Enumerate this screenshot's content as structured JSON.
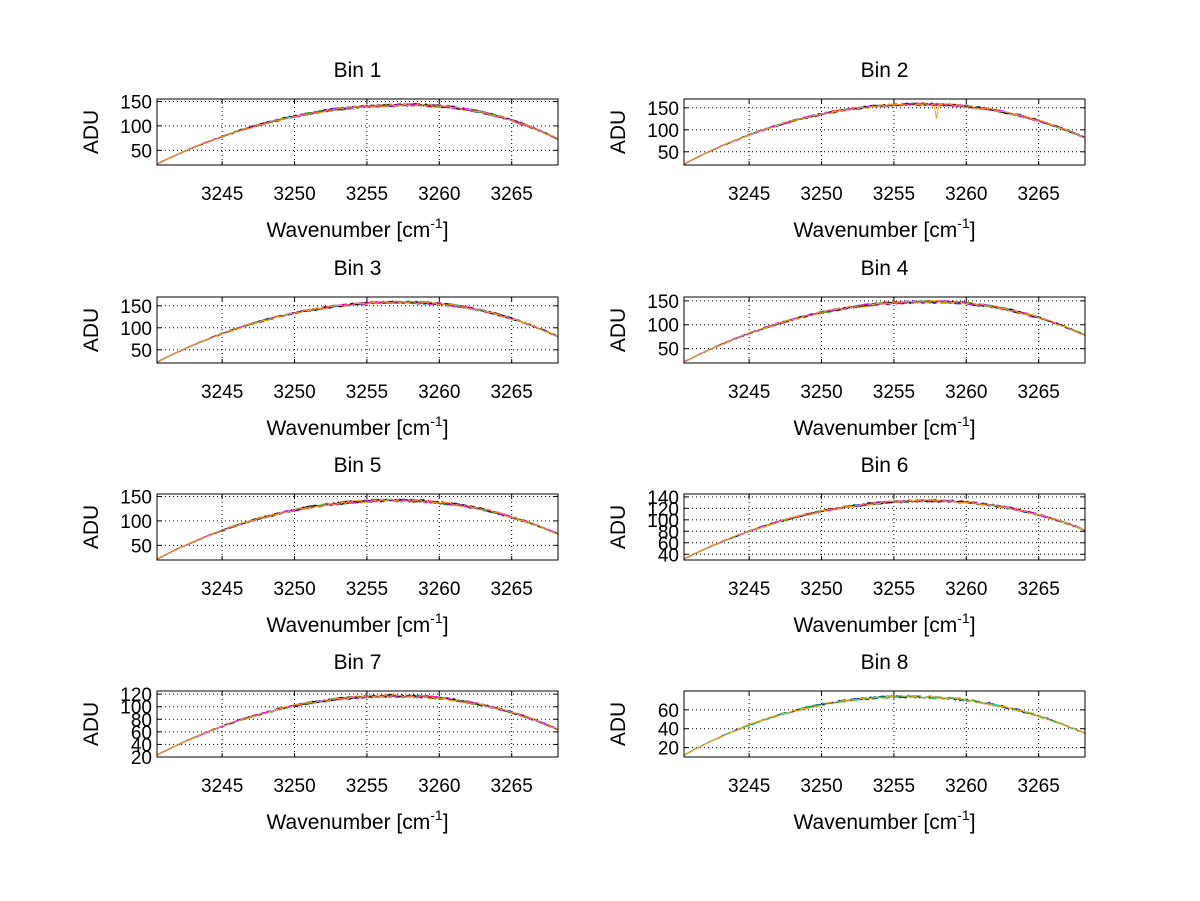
{
  "chart_data": [
    {
      "type": "line",
      "title": "Bin 1",
      "xlabel": "Wavenumber [cm-1]",
      "ylabel": "ADU",
      "xlim": [
        3240.5,
        3268.2
      ],
      "ylim": [
        20,
        155
      ],
      "xticks": [
        3245,
        3250,
        3255,
        3260,
        3265
      ],
      "yticks": [
        50,
        100,
        150
      ],
      "grid": true,
      "peak_x": 3258,
      "peak_y": 143,
      "edge_y": [
        22,
        73
      ],
      "noise": 4,
      "dip": null,
      "series_colors": [
        "#00c8c8",
        "#ff0000",
        "#0000ff",
        "#00c000",
        "#000000",
        "#ff00ff",
        "#ffa000"
      ]
    },
    {
      "type": "line",
      "title": "Bin 2",
      "xlabel": "Wavenumber [cm-1]",
      "ylabel": "ADU",
      "xlim": [
        3240.5,
        3268.2
      ],
      "ylim": [
        20,
        170
      ],
      "xticks": [
        3245,
        3250,
        3255,
        3260,
        3265
      ],
      "yticks": [
        50,
        100,
        150
      ],
      "grid": true,
      "peak_x": 3257,
      "peak_y": 158,
      "edge_y": [
        22,
        82
      ],
      "noise": 4,
      "dip": {
        "x": 3257.9,
        "depth": 35
      },
      "series_colors": [
        "#00c8c8",
        "#ff0000",
        "#0000ff",
        "#00c000",
        "#000000",
        "#ff00ff",
        "#ffa000"
      ]
    },
    {
      "type": "line",
      "title": "Bin 3",
      "xlabel": "Wavenumber [cm-1]",
      "ylabel": "ADU",
      "xlim": [
        3240.5,
        3268.2
      ],
      "ylim": [
        20,
        170
      ],
      "xticks": [
        3245,
        3250,
        3255,
        3260,
        3265
      ],
      "yticks": [
        50,
        100,
        150
      ],
      "grid": true,
      "peak_x": 3257.5,
      "peak_y": 158,
      "edge_y": [
        22,
        80
      ],
      "noise": 4,
      "dip": null,
      "series_colors": [
        "#00c8c8",
        "#ff0000",
        "#0000ff",
        "#00c000",
        "#000000",
        "#ff00ff",
        "#ffa000"
      ]
    },
    {
      "type": "line",
      "title": "Bin 4",
      "xlabel": "Wavenumber [cm-1]",
      "ylabel": "ADU",
      "xlim": [
        3240.5,
        3268.2
      ],
      "ylim": [
        20,
        158
      ],
      "xticks": [
        3245,
        3250,
        3255,
        3260,
        3265
      ],
      "yticks": [
        50,
        100,
        150
      ],
      "grid": true,
      "peak_x": 3257.5,
      "peak_y": 148,
      "edge_y": [
        22,
        78
      ],
      "noise": 4,
      "dip": null,
      "series_colors": [
        "#00c8c8",
        "#ff0000",
        "#0000ff",
        "#00c000",
        "#000000",
        "#ff00ff",
        "#ffa000"
      ]
    },
    {
      "type": "line",
      "title": "Bin 5",
      "xlabel": "Wavenumber [cm-1]",
      "ylabel": "ADU",
      "xlim": [
        3240.5,
        3268.2
      ],
      "ylim": [
        20,
        155
      ],
      "xticks": [
        3245,
        3250,
        3255,
        3260,
        3265
      ],
      "yticks": [
        50,
        100,
        150
      ],
      "grid": true,
      "peak_x": 3257,
      "peak_y": 142,
      "edge_y": [
        22,
        73
      ],
      "noise": 4,
      "dip": null,
      "series_colors": [
        "#00c8c8",
        "#ff0000",
        "#0000ff",
        "#00c000",
        "#000000",
        "#ff00ff",
        "#ffa000"
      ]
    },
    {
      "type": "line",
      "title": "Bin 6",
      "xlabel": "Wavenumber [cm-1]",
      "ylabel": "ADU",
      "xlim": [
        3240.5,
        3268.2
      ],
      "ylim": [
        30,
        145
      ],
      "xticks": [
        3245,
        3250,
        3255,
        3260,
        3265
      ],
      "yticks": [
        40,
        60,
        80,
        100,
        120,
        140
      ],
      "grid": true,
      "peak_x": 3257.5,
      "peak_y": 133,
      "edge_y": [
        32,
        82
      ],
      "noise": 3,
      "dip": null,
      "series_colors": [
        "#00c8c8",
        "#ff0000",
        "#0000ff",
        "#00c000",
        "#000000",
        "#ff00ff",
        "#ffa000"
      ]
    },
    {
      "type": "line",
      "title": "Bin 7",
      "xlabel": "Wavenumber [cm-1]",
      "ylabel": "ADU",
      "xlim": [
        3240.5,
        3268.2
      ],
      "ylim": [
        20,
        125
      ],
      "xticks": [
        3245,
        3250,
        3255,
        3260,
        3265
      ],
      "yticks": [
        20,
        40,
        60,
        80,
        100,
        120
      ],
      "grid": true,
      "peak_x": 3257,
      "peak_y": 117,
      "edge_y": [
        23,
        64
      ],
      "noise": 3,
      "dip": null,
      "series_colors": [
        "#00c8c8",
        "#ff0000",
        "#0000ff",
        "#00c000",
        "#000000",
        "#ff00ff",
        "#ffa000"
      ]
    },
    {
      "type": "line",
      "title": "Bin 8",
      "xlabel": "Wavenumber [cm-1]",
      "ylabel": "ADU",
      "xlim": [
        3240.5,
        3268.2
      ],
      "ylim": [
        10,
        80
      ],
      "xticks": [
        3245,
        3250,
        3255,
        3260,
        3265
      ],
      "yticks": [
        20,
        40,
        60
      ],
      "grid": true,
      "peak_x": 3256,
      "peak_y": 74,
      "edge_y": [
        12,
        35
      ],
      "noise": 2,
      "dip": null,
      "series_colors": [
        "#00c8c8",
        "#0000ff",
        "#00c000",
        "#ffa000"
      ]
    }
  ]
}
